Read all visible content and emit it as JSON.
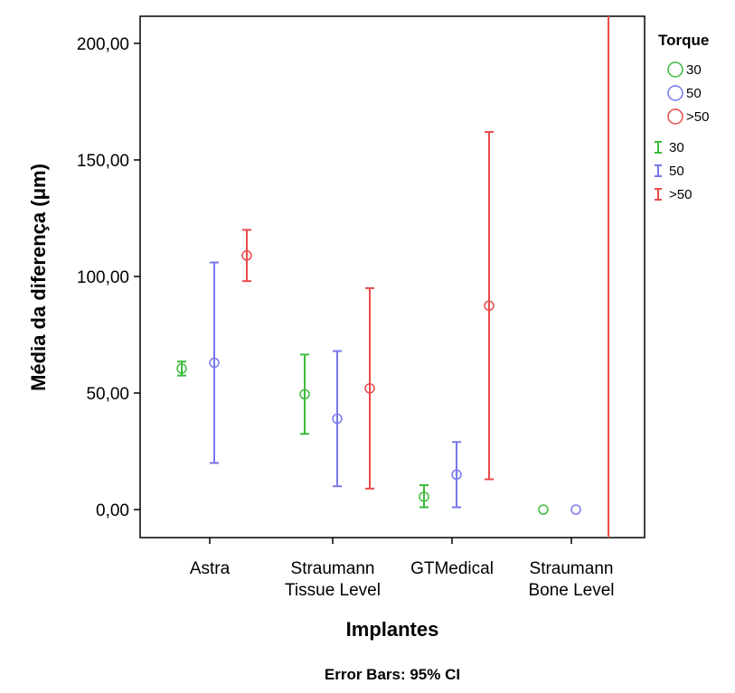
{
  "chart_data": {
    "type": "scatter",
    "subtype": "error-bar",
    "ylabel": "Média da diferença (μm)",
    "xlabel": "Implantes",
    "footnote": "Error Bars: 95% CI",
    "categories": [
      [
        "Astra"
      ],
      [
        "Straumann",
        "Tissue Level"
      ],
      [
        "GTMedical"
      ],
      [
        "Straumann",
        "Bone Level"
      ]
    ],
    "yticks": [
      "0,00",
      "50,00",
      "100,00",
      "150,00",
      "200,00"
    ],
    "ylim": [
      -12,
      212
    ],
    "legend": {
      "title": "Torque",
      "placement": "right",
      "marker_entries": [
        "30",
        "50",
        ">50"
      ],
      "errorbar_entries": [
        "30",
        "50",
        ">50"
      ]
    },
    "series": [
      {
        "name": "30",
        "color": "#3dbb3d",
        "means": [
          60.5,
          49.5,
          5.5,
          0
        ],
        "lower": [
          57.5,
          32.5,
          1,
          0
        ],
        "upper": [
          63.5,
          66.5,
          10.5,
          0
        ]
      },
      {
        "name": "50",
        "color": "#7777ee",
        "means": [
          63,
          39,
          15,
          0
        ],
        "lower": [
          20,
          10,
          1,
          0
        ],
        "upper": [
          106,
          68,
          29,
          0
        ]
      },
      {
        "name": ">50",
        "color": "#e84a4a",
        "means": [
          109,
          52,
          87.5,
          null
        ],
        "lower": [
          98,
          9,
          13,
          null
        ],
        "upper": [
          120,
          95,
          162,
          null
        ],
        "clipped_line": [
          false,
          false,
          false,
          true
        ]
      }
    ]
  }
}
